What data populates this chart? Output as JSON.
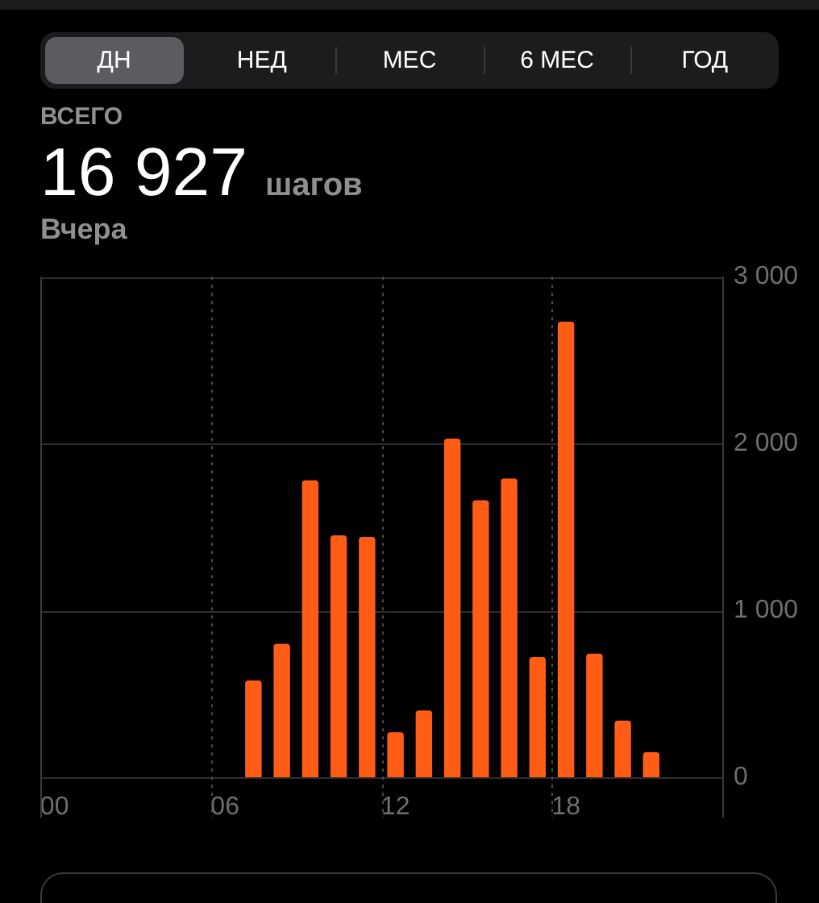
{
  "chart_data": {
    "type": "bar",
    "title": "16 927",
    "subtitle": "Вчера",
    "annotations": [
      "ДН",
      "НЕД",
      "МЕС",
      "6 МЕС",
      "ГОД",
      "ВСЕГО",
      "шагов"
    ],
    "categories": [
      "00",
      null,
      null,
      null,
      null,
      null,
      "06",
      null,
      null,
      null,
      null,
      null,
      "12",
      null,
      null,
      null,
      null,
      null,
      "18",
      null,
      null,
      null,
      null,
      null
    ],
    "values": [
      null,
      null,
      null,
      null,
      null,
      null,
      null,
      580,
      800,
      1780,
      1450,
      1440,
      270,
      400,
      2030,
      1660,
      1790,
      720,
      2730,
      740,
      340,
      150,
      null,
      null
    ],
    "color": "#ff5c16",
    "ylim": [
      0,
      3000
    ],
    "yticks": [
      0,
      {
        "value": 1000,
        "label": "1 000"
      },
      {
        "value": 2000,
        "label": "2 000"
      },
      {
        "value": 3000,
        "label": "3 000"
      }
    ],
    "grid": true,
    "legend": false
  }
}
